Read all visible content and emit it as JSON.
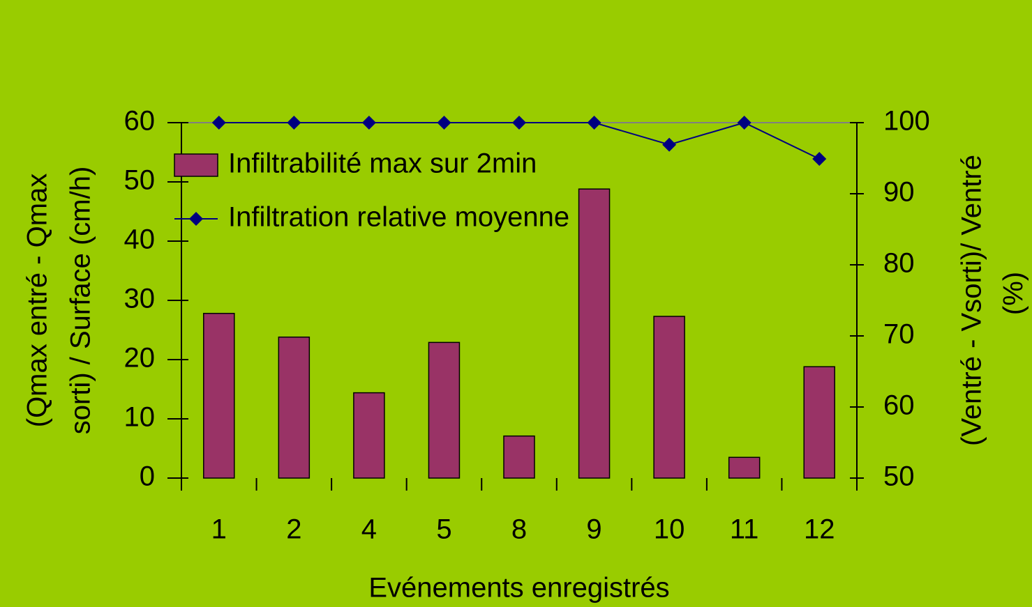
{
  "chart_data": {
    "type": "combo",
    "xlabel": "Evénements enregistrés",
    "ylabel": [
      "(Qmax entré - Qmax",
      "sorti) / Surface (cm/h)"
    ],
    "y2label": [
      "(Ventré - Vsorti)/ Ventré",
      "(%)"
    ],
    "categories": [
      "1",
      "2",
      "4",
      "5",
      "8",
      "9",
      "10",
      "11",
      "12"
    ],
    "series": [
      {
        "name": "Infiltrabilité max sur 2min",
        "type": "bar",
        "color": "#993366",
        "values": [
          27.8,
          23.8,
          14.4,
          22.9,
          7.1,
          48.8,
          27.3,
          3.5,
          18.8
        ]
      },
      {
        "name": "Infiltration relative moyenne",
        "type": "line",
        "axis": "y2",
        "color": "#000080",
        "values": [
          100,
          100,
          100,
          100,
          100,
          100,
          96.9,
          100,
          94.9
        ]
      }
    ],
    "ylim": [
      0,
      60
    ],
    "yticks": [
      0,
      10,
      20,
      30,
      40,
      50,
      60
    ],
    "y2lim": [
      50,
      100
    ],
    "y2ticks": [
      50,
      60,
      70,
      80,
      90,
      100
    ],
    "legend": "top-left"
  }
}
